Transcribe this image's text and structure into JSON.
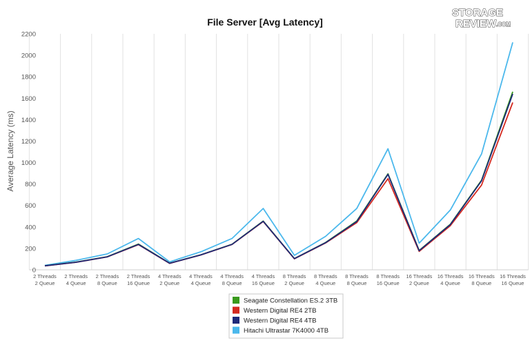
{
  "logo": {
    "line1": "STORAGE",
    "line2": "REVIEW",
    "suffix": ".COM"
  },
  "chart_data": {
    "type": "line",
    "title": "File Server [Avg Latency]",
    "xlabel": "",
    "ylabel": "Average Latency (ms)",
    "ylim": [
      0,
      2200
    ],
    "yticks": [
      0,
      200,
      400,
      600,
      800,
      1000,
      1200,
      1400,
      1600,
      1800,
      2000,
      2200
    ],
    "grid": "vertical",
    "legend_position": "bottom-center",
    "categories": [
      [
        "2 Threads",
        "2 Queue"
      ],
      [
        "2 Threads",
        "4 Queue"
      ],
      [
        "2 Threads",
        "8 Queue"
      ],
      [
        "2 Threads",
        "16 Queue"
      ],
      [
        "4 Threads",
        "2 Queue"
      ],
      [
        "4 Threads",
        "4 Queue"
      ],
      [
        "4 Threads",
        "8 Queue"
      ],
      [
        "4 Threads",
        "16 Queue"
      ],
      [
        "8 Threads",
        "2 Queue"
      ],
      [
        "8 Threads",
        "4 Queue"
      ],
      [
        "8 Threads",
        "8 Queue"
      ],
      [
        "8 Threads",
        "16 Queue"
      ],
      [
        "16 Threads",
        "2 Queue"
      ],
      [
        "16 Threads",
        "4 Queue"
      ],
      [
        "16 Threads",
        "8 Queue"
      ],
      [
        "16 Threads",
        "16 Queue"
      ]
    ],
    "series": [
      {
        "name": "Seagate Constellation ES.2 3TB",
        "color": "#3a9a1c",
        "values": [
          38,
          72,
          122,
          240,
          62,
          140,
          238,
          455,
          105,
          255,
          455,
          895,
          180,
          425,
          835,
          1660
        ]
      },
      {
        "name": "Western Digital RE4 2TB",
        "color": "#d42a20",
        "values": [
          36,
          70,
          120,
          235,
          60,
          138,
          236,
          450,
          102,
          250,
          440,
          850,
          172,
          412,
          790,
          1560
        ]
      },
      {
        "name": "Western Digital RE4 4TB",
        "color": "#1e2a7a",
        "values": [
          37,
          71,
          121,
          237,
          61,
          139,
          237,
          452,
          104,
          253,
          450,
          890,
          178,
          422,
          830,
          1640
        ]
      },
      {
        "name": "Hitachi Ultrastar 7K4000 4TB",
        "color": "#4bb8ec",
        "values": [
          42,
          88,
          148,
          292,
          74,
          168,
          292,
          572,
          135,
          312,
          572,
          1128,
          248,
          558,
          1080,
          2120
        ]
      }
    ]
  }
}
